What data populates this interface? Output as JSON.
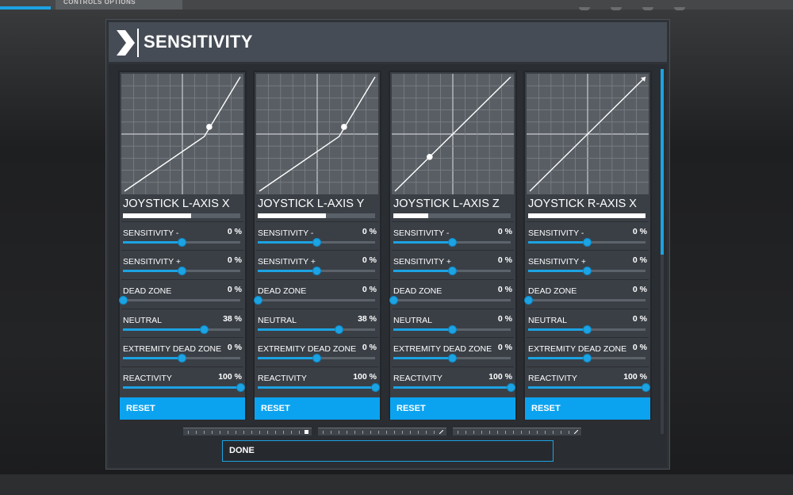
{
  "background": {
    "top_tab_label": "CONTROLS OPTIONS"
  },
  "dialog": {
    "title": "SENSITIVITY",
    "done_label": "DONE"
  },
  "colors": {
    "accent": "#1ca3e3",
    "reset_button": "#0ba3f0",
    "graph_bg": "#595e64",
    "card_bg": "#3a3f46"
  },
  "cards": [
    {
      "axis_name": "JOYSTICK L-AXIS X",
      "input_level": 0.58,
      "curve_marker": "dot",
      "params": [
        {
          "label": "SENSITIVITY -",
          "value": "0 %",
          "level": 0.5
        },
        {
          "label": "SENSITIVITY +",
          "value": "0 %",
          "level": 0.5
        },
        {
          "label": "DEAD ZONE",
          "value": "0 %",
          "level": 0.0
        },
        {
          "label": "NEUTRAL",
          "value": "38 %",
          "level": 0.69
        },
        {
          "label": "EXTREMITY DEAD ZONE",
          "value": "0 %",
          "level": 0.5
        },
        {
          "label": "REACTIVITY",
          "value": "100 %",
          "level": 1.0
        }
      ],
      "reset_label": "RESET"
    },
    {
      "axis_name": "JOYSTICK L-AXIS Y",
      "input_level": 0.58,
      "curve_marker": "dot",
      "params": [
        {
          "label": "SENSITIVITY -",
          "value": "0 %",
          "level": 0.5
        },
        {
          "label": "SENSITIVITY +",
          "value": "0 %",
          "level": 0.5
        },
        {
          "label": "DEAD ZONE",
          "value": "0 %",
          "level": 0.0
        },
        {
          "label": "NEUTRAL",
          "value": "38 %",
          "level": 0.69
        },
        {
          "label": "EXTREMITY DEAD ZONE",
          "value": "0 %",
          "level": 0.5
        },
        {
          "label": "REACTIVITY",
          "value": "100 %",
          "level": 1.0
        }
      ],
      "reset_label": "RESET"
    },
    {
      "axis_name": "JOYSTICK L-AXIS Z",
      "input_level": 0.3,
      "curve_marker": "dot",
      "params": [
        {
          "label": "SENSITIVITY -",
          "value": "0 %",
          "level": 0.5
        },
        {
          "label": "SENSITIVITY +",
          "value": "0 %",
          "level": 0.5
        },
        {
          "label": "DEAD ZONE",
          "value": "0 %",
          "level": 0.0
        },
        {
          "label": "NEUTRAL",
          "value": "0 %",
          "level": 0.5
        },
        {
          "label": "EXTREMITY DEAD ZONE",
          "value": "0 %",
          "level": 0.5
        },
        {
          "label": "REACTIVITY",
          "value": "100 %",
          "level": 1.0
        }
      ],
      "reset_label": "RESET"
    },
    {
      "axis_name": "JOYSTICK R-AXIS X",
      "input_level": 1.0,
      "curve_marker": "arrow",
      "params": [
        {
          "label": "SENSITIVITY -",
          "value": "0 %",
          "level": 0.5
        },
        {
          "label": "SENSITIVITY +",
          "value": "0 %",
          "level": 0.5
        },
        {
          "label": "DEAD ZONE",
          "value": "0 %",
          "level": 0.0
        },
        {
          "label": "NEUTRAL",
          "value": "0 %",
          "level": 0.5
        },
        {
          "label": "EXTREMITY DEAD ZONE",
          "value": "0 %",
          "level": 0.5
        },
        {
          "label": "REACTIVITY",
          "value": "100 %",
          "level": 1.0
        }
      ],
      "reset_label": "RESET"
    }
  ]
}
